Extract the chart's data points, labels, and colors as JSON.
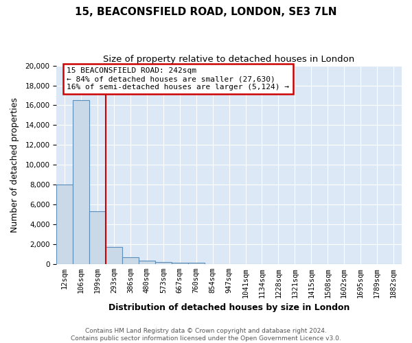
{
  "title": "15, BEACONSFIELD ROAD, LONDON, SE3 7LN",
  "subtitle": "Size of property relative to detached houses in London",
  "xlabel": "Distribution of detached houses by size in London",
  "ylabel": "Number of detached properties",
  "footer_line1": "Contains HM Land Registry data © Crown copyright and database right 2024.",
  "footer_line2": "Contains public sector information licensed under the Open Government Licence v3.0.",
  "bin_labels": [
    "12sqm",
    "106sqm",
    "199sqm",
    "293sqm",
    "386sqm",
    "480sqm",
    "573sqm",
    "667sqm",
    "760sqm",
    "854sqm",
    "947sqm",
    "1041sqm",
    "1134sqm",
    "1228sqm",
    "1321sqm",
    "1415sqm",
    "1508sqm",
    "1602sqm",
    "1695sqm",
    "1789sqm",
    "1882sqm"
  ],
  "bar_heights": [
    8050,
    16500,
    5350,
    1750,
    700,
    380,
    220,
    160,
    130,
    0,
    0,
    0,
    0,
    0,
    0,
    0,
    0,
    0,
    0,
    0,
    0
  ],
  "bar_color": "#c9d9e8",
  "bar_edge_color": "#5b8db8",
  "red_line_x": 2,
  "annotation_text": "15 BEACONSFIELD ROAD: 242sqm\n← 84% of detached houses are smaller (27,630)\n16% of semi-detached houses are larger (5,124) →",
  "annotation_box_color": "#ffffff",
  "annotation_border_color": "#cc0000",
  "ylim": [
    0,
    20000
  ],
  "yticks": [
    0,
    2000,
    4000,
    6000,
    8000,
    10000,
    12000,
    14000,
    16000,
    18000,
    20000
  ],
  "background_color": "#ffffff",
  "axes_background": "#dce8f5",
  "grid_color": "#ffffff",
  "title_fontsize": 11,
  "subtitle_fontsize": 9.5,
  "label_fontsize": 9,
  "tick_fontsize": 7.5,
  "footer_fontsize": 6.5
}
